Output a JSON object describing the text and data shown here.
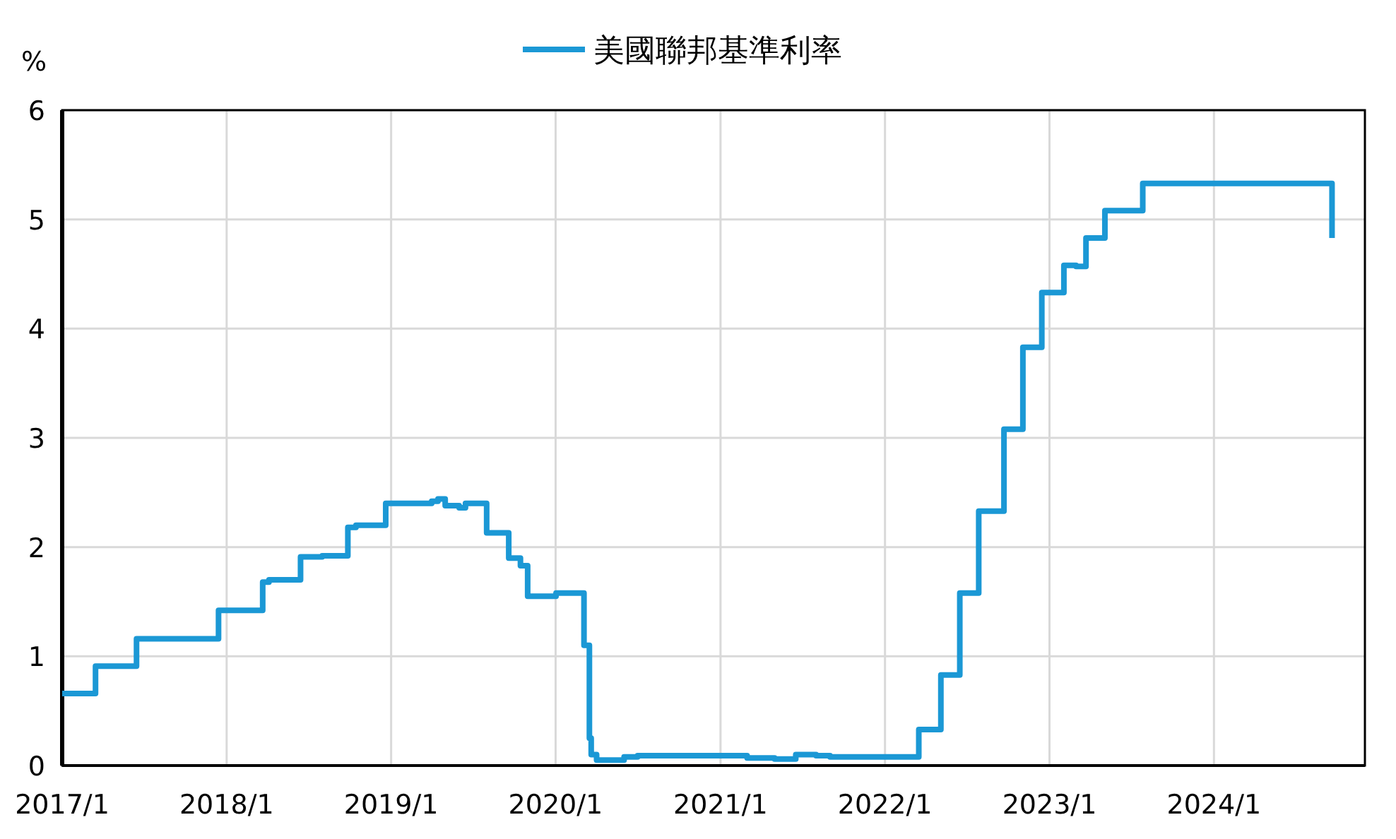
{
  "chart_data": {
    "type": "step",
    "ylabel": "%",
    "legend": "top",
    "grid": true,
    "xlim": [
      "2017-01-01",
      "2024-12-01"
    ],
    "xticks": [
      {
        "value": "2017-01",
        "label": "2017/1"
      },
      {
        "value": "2018-01",
        "label": "2018/1"
      },
      {
        "value": "2019-01",
        "label": "2019/1"
      },
      {
        "value": "2020-01",
        "label": "2020/1"
      },
      {
        "value": "2021-01",
        "label": "2021/1"
      },
      {
        "value": "2022-01",
        "label": "2022/1"
      },
      {
        "value": "2023-01",
        "label": "2023/1"
      },
      {
        "value": "2024-01",
        "label": "2024/1"
      }
    ],
    "ylim": [
      0,
      6
    ],
    "yticks": [
      0,
      1,
      2,
      3,
      4,
      5,
      6
    ],
    "series": [
      {
        "name": "美國聯邦基準利率",
        "color": "#1b98d5",
        "x": [
          "2017-01-01",
          "2017-03-16",
          "2017-06-15",
          "2017-12-14",
          "2018-03-22",
          "2018-04-05",
          "2018-06-14",
          "2018-08-01",
          "2018-09-27",
          "2018-10-15",
          "2018-12-20",
          "2019-04-01",
          "2019-04-15",
          "2019-05-01",
          "2019-06-01",
          "2019-06-15",
          "2019-08-01",
          "2019-09-19",
          "2019-10-15",
          "2019-10-31",
          "2020-01-02",
          "2020-03-04",
          "2020-03-16",
          "2020-03-20",
          "2020-04-01",
          "2020-06-01",
          "2020-07-01",
          "2021-01-01",
          "2021-03-01",
          "2021-05-01",
          "2021-06-17",
          "2021-08-01",
          "2021-09-01",
          "2022-03-17",
          "2022-05-05",
          "2022-06-16",
          "2022-07-28",
          "2022-09-22",
          "2022-11-03",
          "2022-12-15",
          "2023-02-02",
          "2023-03-01",
          "2023-03-23",
          "2023-05-04",
          "2023-07-27",
          "2024-09-19"
        ],
        "values": [
          0.66,
          0.91,
          1.16,
          1.42,
          1.68,
          1.7,
          1.91,
          1.92,
          2.18,
          2.2,
          2.4,
          2.42,
          2.44,
          2.38,
          2.36,
          2.4,
          2.13,
          1.9,
          1.83,
          1.55,
          1.58,
          1.1,
          0.25,
          0.1,
          0.05,
          0.08,
          0.09,
          0.09,
          0.07,
          0.06,
          0.1,
          0.09,
          0.08,
          0.33,
          0.83,
          1.58,
          2.33,
          3.08,
          3.83,
          4.33,
          4.58,
          4.57,
          4.83,
          5.08,
          5.33,
          4.83
        ]
      }
    ]
  }
}
